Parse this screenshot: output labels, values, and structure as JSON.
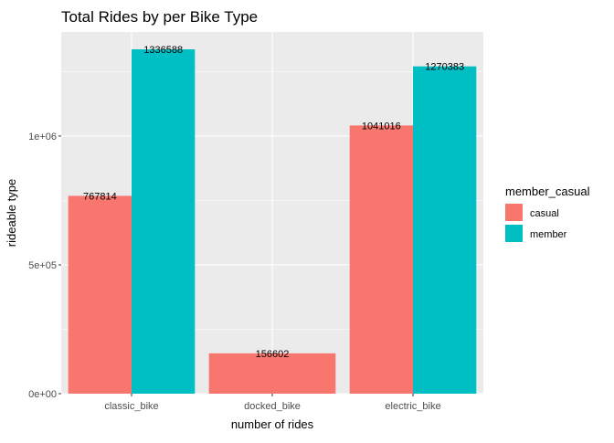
{
  "chart_data": {
    "type": "bar",
    "title": "Total Rides by per Bike Type",
    "xlabel": "number of rides",
    "ylabel": "rideable type",
    "categories": [
      "classic_bike",
      "docked_bike",
      "electric_bike"
    ],
    "series": [
      {
        "name": "casual",
        "values": [
          767814,
          156602,
          1041016
        ],
        "color": "#F8766D"
      },
      {
        "name": "member",
        "values": [
          1336588,
          null,
          1270383
        ],
        "color": "#00BFC4"
      }
    ],
    "data_labels": [
      "767814",
      "1336588",
      "156602",
      "1041016",
      "1270383"
    ],
    "y_ticks": [
      {
        "value": 0,
        "label": "0e+00"
      },
      {
        "value": 500000,
        "label": "5e+05"
      },
      {
        "value": 1000000,
        "label": "1e+06"
      }
    ],
    "ylim": [
      0,
      1403917
    ],
    "grid": true,
    "panel_background": "#EBEBEB",
    "legend": {
      "title": "member_casual",
      "placement": "right",
      "entries": [
        "casual",
        "member"
      ]
    }
  }
}
